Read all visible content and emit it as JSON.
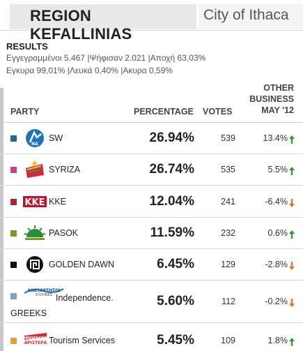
{
  "header": {
    "region": "REGION KEFALLINIAS",
    "city": "City of Ithaca"
  },
  "results": {
    "title": "RESULTS",
    "line1": "Εγγεγραμμένοι 5.467 |Ψήφισαν 2.021 |Αποχή 63,03%",
    "line2": "Εγκυρα 99,01% |Λευκά 0,40% |Ακυρα 0,59%"
  },
  "table": {
    "col_party": "PARTY",
    "col_percentage": "PERCENTAGE",
    "col_votes": "VOTES",
    "col_other_line1": "OTHER",
    "col_other_line2": "BUSINESS",
    "col_other_line3": "MAY '12",
    "rows": [
      {
        "name": "SW",
        "percentage": "26.94%",
        "votes": "539",
        "change": "13.4%",
        "trend": "up",
        "color": "#1f6d8c",
        "logo": "nd-icon"
      },
      {
        "name": "SYRIZA",
        "percentage": "26.74%",
        "votes": "535",
        "change": "5.5%",
        "trend": "up",
        "color": "#c2448f",
        "logo": "syriza-icon"
      },
      {
        "name": "KKE",
        "percentage": "12.04%",
        "votes": "241",
        "change": "-6.4%",
        "trend": "down",
        "color": "#b02525",
        "logo": "kke-icon"
      },
      {
        "name": "PASOK",
        "percentage": "11.59%",
        "votes": "232",
        "change": "0.6%",
        "trend": "up",
        "color": "#7d9a1f",
        "logo": "pasok-sun-icon"
      },
      {
        "name": "GOLDEN DAWN",
        "percentage": "6.45%",
        "votes": "129",
        "change": "-2.8%",
        "trend": "down",
        "color": "#111111",
        "logo": "meander-icon"
      },
      {
        "name": "Independence.",
        "name2": "GREEKS",
        "percentage": "5.60%",
        "votes": "112",
        "change": "-0.2%",
        "trend": "down",
        "color": "#7fa6c4",
        "logo": "anel-icon"
      },
      {
        "name": "Tourism Services",
        "percentage": "5.45%",
        "votes": "109",
        "change": "1.8%",
        "trend": "up",
        "color": "#e3a33a",
        "logo": "dimar-icon"
      }
    ]
  },
  "colors": {
    "up": "#2e9b2e",
    "down": "#e8731c"
  }
}
